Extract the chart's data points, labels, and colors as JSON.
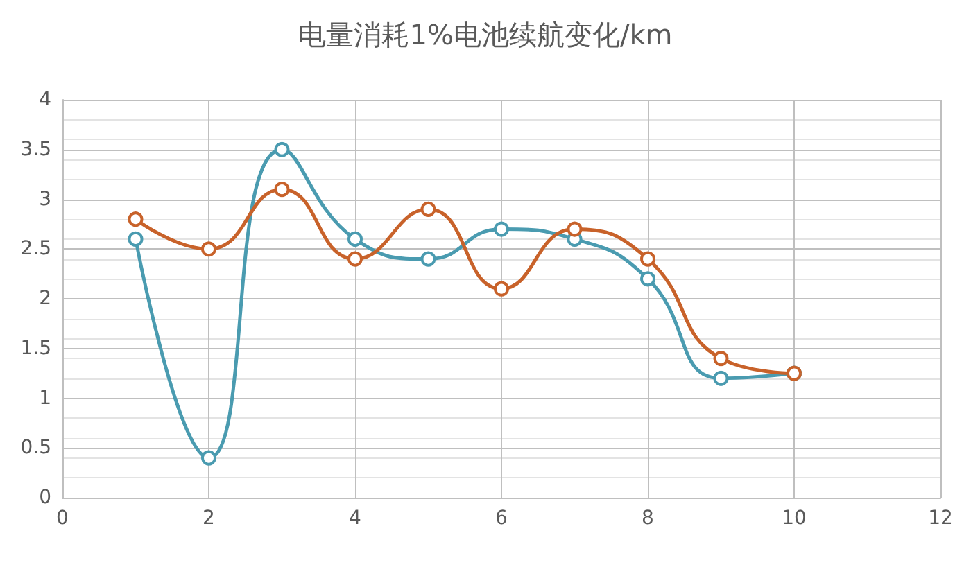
{
  "chart_data": {
    "type": "line",
    "title": "电量消耗1%电池续航变化/km",
    "x": [
      1,
      2,
      3,
      4,
      5,
      6,
      7,
      8,
      9,
      10
    ],
    "series": [
      {
        "color": "#4a9bb0",
        "values": [
          2.6,
          0.4,
          3.5,
          2.6,
          2.4,
          2.7,
          2.6,
          2.2,
          1.2,
          1.25
        ]
      },
      {
        "color": "#c8622a",
        "values": [
          2.8,
          2.5,
          3.1,
          2.4,
          2.9,
          2.1,
          2.7,
          2.4,
          1.4,
          1.25
        ]
      }
    ],
    "xlim": [
      0,
      12
    ],
    "xticks": [
      0,
      2,
      4,
      6,
      8,
      10,
      12
    ],
    "ylim": [
      0,
      4
    ],
    "yticks": [
      0,
      0.5,
      1,
      1.5,
      2,
      2.5,
      3,
      3.5,
      4
    ],
    "grid": true,
    "marker": "circle",
    "line_style": "solid"
  }
}
